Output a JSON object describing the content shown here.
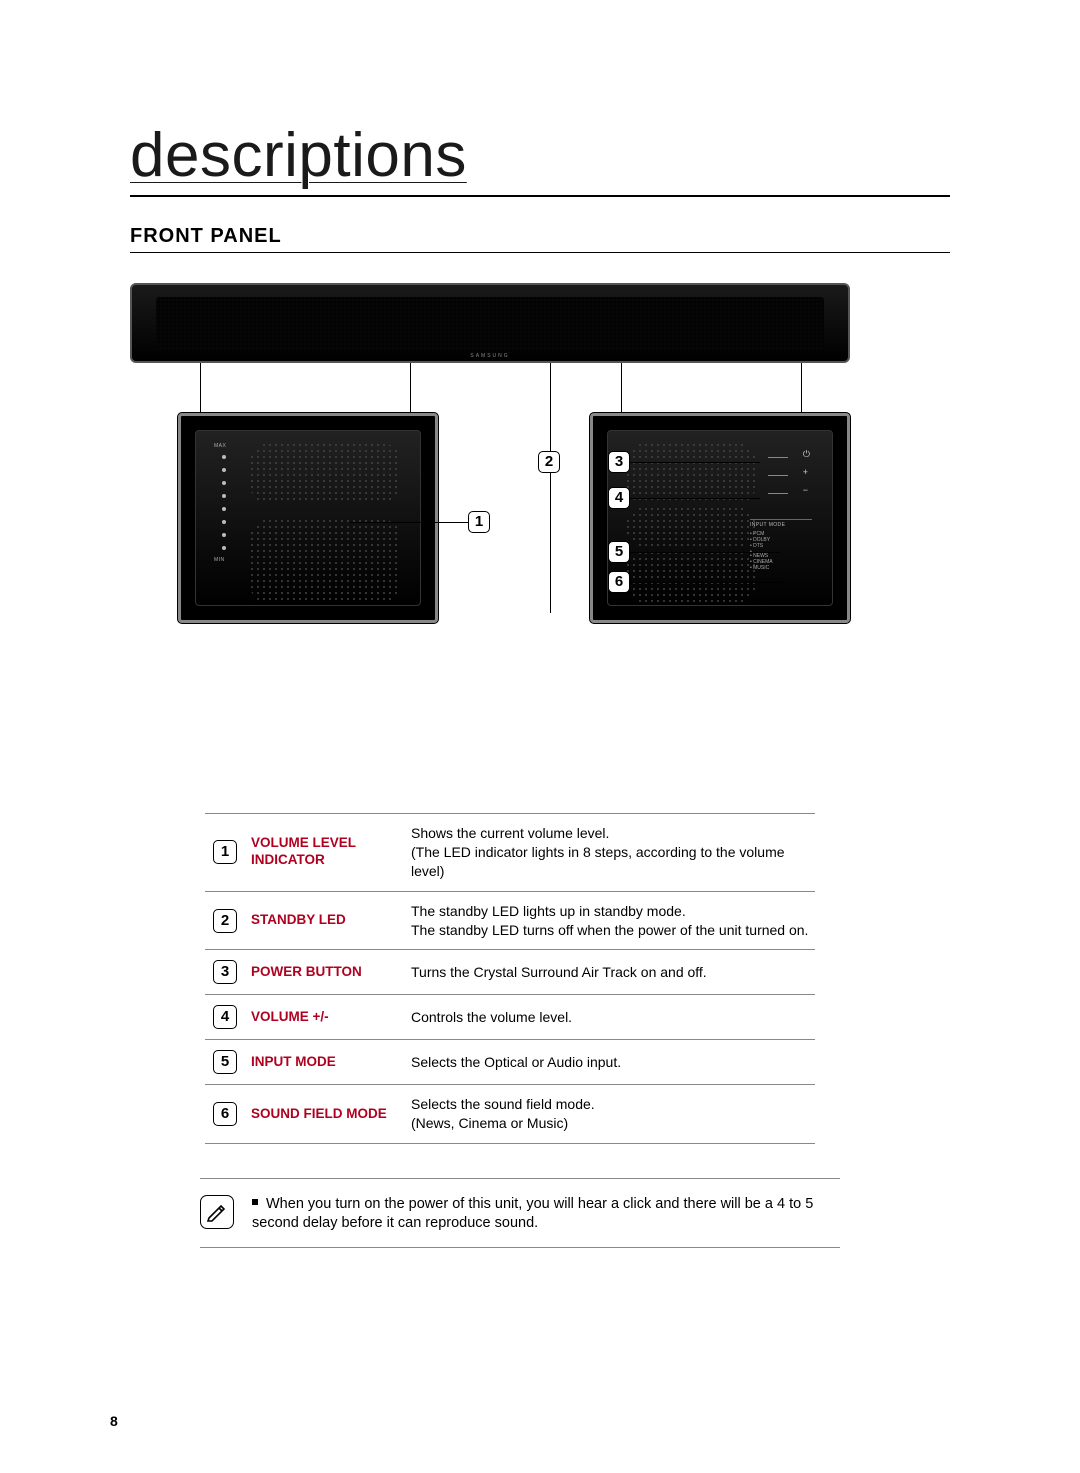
{
  "page_number": "8",
  "title": "descriptions",
  "section_heading": "FRONT PANEL",
  "soundbar": {
    "brand": "SAMSUNG",
    "left_panel": {
      "vol_max": "MAX",
      "vol_min": "MIN",
      "dot_count": 8
    },
    "right_panel": {
      "input_mode_header": "INPUT MODE",
      "signal_formats": [
        "PCM",
        "DOLBY",
        "DTS"
      ],
      "sound_fields": [
        "NEWS",
        "CINEMA",
        "MUSIC"
      ]
    }
  },
  "callouts": [
    {
      "n": "1"
    },
    {
      "n": "2"
    },
    {
      "n": "3"
    },
    {
      "n": "4"
    },
    {
      "n": "5"
    },
    {
      "n": "6"
    }
  ],
  "table": {
    "name_color": "#b00020",
    "rows": [
      {
        "n": "1",
        "name": "VOLUME LEVEL INDICATOR",
        "text": "Shows the current volume level.\n(The LED indicator lights in 8 steps, according to the volume level)"
      },
      {
        "n": "2",
        "name": "STANDBY LED",
        "text": "The standby LED lights up in standby mode.\nThe standby LED turns off when the power of the unit turned on."
      },
      {
        "n": "3",
        "name": "POWER BUTTON",
        "text": "Turns the Crystal Surround Air Track on and off."
      },
      {
        "n": "4",
        "name": "VOLUME +/-",
        "text": "Controls the volume level."
      },
      {
        "n": "5",
        "name": "INPUT MODE",
        "text": "Selects the Optical or Audio input."
      },
      {
        "n": "6",
        "name": "SOUND FIELD MODE",
        "text": "Selects the sound field mode.\n(News, Cinema or Music)"
      }
    ]
  },
  "note": "When you turn on the power of this unit, you will hear a click and there will be a 4 to 5 second delay before it can reproduce sound."
}
